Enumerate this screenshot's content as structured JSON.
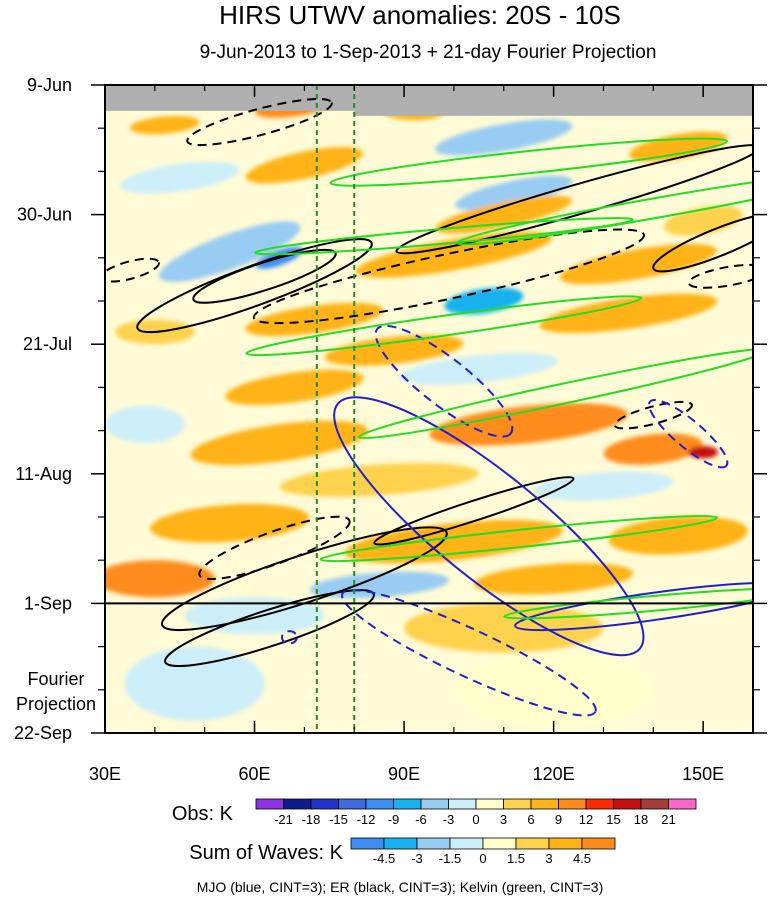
{
  "chart_data": {
    "type": "heatmap",
    "title": "HIRS UTWV anomalies: 20S - 10S",
    "subtitle": "9-Jun-2013 to 1-Sep-2013 + 21-day Fourier Projection",
    "x_axis": {
      "range": [
        30,
        160
      ],
      "ticks": [
        30,
        60,
        90,
        120,
        150
      ],
      "tick_labels": [
        "30E",
        "60E",
        "90E",
        "120E",
        "150E"
      ],
      "minor_ticks": [
        40,
        50,
        70,
        80,
        100,
        110,
        130,
        140,
        160
      ]
    },
    "y_axis": {
      "range_days": [
        0,
        105
      ],
      "ticks_days": [
        0,
        21,
        42,
        63,
        84,
        105
      ],
      "tick_labels": [
        "9-Jun",
        "30-Jun",
        "21-Jul",
        "11-Aug",
        "1-Sep",
        "22-Sep"
      ],
      "reversed": true
    },
    "projection_start_day": 84,
    "projection_label": [
      "Fourier",
      "Projection"
    ],
    "missing_until_day": 5,
    "missing_from_lon": 80,
    "dashed_reference_lons": [
      72.5,
      80
    ],
    "colorbars": [
      {
        "label": "Obs: K",
        "levels": [
          -21,
          -18,
          -15,
          -12,
          -9,
          -6,
          -3,
          0,
          3,
          6,
          9,
          12,
          15,
          18,
          21
        ],
        "colors": [
          "#8c33e6",
          "#0f1a8c",
          "#2033cc",
          "#3f6ae0",
          "#3d8ef0",
          "#19b2f0",
          "#99ccf2",
          "#cceef9",
          "#ffffcc",
          "#ffd24d",
          "#ffb319",
          "#ff8c1a",
          "#ff2a00",
          "#c81010",
          "#a83c3c",
          "#ff66c8"
        ]
      },
      {
        "label": "Sum of Waves: K",
        "levels": [
          -4.5,
          -3,
          -1.5,
          0,
          1.5,
          3,
          4.5
        ],
        "colors": [
          "#3d8ef0",
          "#19b2f0",
          "#99ccf2",
          "#cceef9",
          "#ffffcc",
          "#ffd24d",
          "#ffb319",
          "#ff8c1a"
        ]
      }
    ],
    "contour_legend": "MJO (blue, CINT=3); ER (black, CINT=3); Kelvin (green, CINT=3)",
    "wave_colors": {
      "MJO": "#1f1fcc",
      "ER": "#000000",
      "Kelvin": "#22dd22"
    },
    "field_colors": {
      "missing": "#b0b0b0",
      "reference_line": "#228b22"
    },
    "anomaly_features": [
      {
        "lon": 68,
        "day": 3.5,
        "lon_half_width": 8,
        "day_half_width": 1.6,
        "angle": -8,
        "value": 9
      },
      {
        "lon": 92,
        "day": 4.5,
        "lon_half_width": 6,
        "day_half_width": 1.2,
        "angle": 0,
        "value": 6
      },
      {
        "lon": 42,
        "day": 6.5,
        "lon_half_width": 7,
        "day_half_width": 1.4,
        "angle": -5,
        "value": 6
      },
      {
        "lon": 110,
        "day": 8.5,
        "lon_half_width": 14,
        "day_half_width": 2.2,
        "angle": -10,
        "value": -6
      },
      {
        "lon": 145,
        "day": 10,
        "lon_half_width": 10,
        "day_half_width": 2,
        "angle": -10,
        "value": 6
      },
      {
        "lon": 70,
        "day": 13,
        "lon_half_width": 12,
        "day_half_width": 2.2,
        "angle": -12,
        "value": 6
      },
      {
        "lon": 45,
        "day": 15,
        "lon_half_width": 12,
        "day_half_width": 2.2,
        "angle": -8,
        "value": -3
      },
      {
        "lon": 112,
        "day": 17.5,
        "lon_half_width": 12,
        "day_half_width": 2,
        "angle": -12,
        "value": -6
      },
      {
        "lon": 110,
        "day": 21,
        "lon_half_width": 14,
        "day_half_width": 2,
        "angle": -12,
        "value": 6
      },
      {
        "lon": 150,
        "day": 22,
        "lon_half_width": 8,
        "day_half_width": 2.2,
        "angle": -10,
        "value": 3
      },
      {
        "lon": 55,
        "day": 27,
        "lon_half_width": 15,
        "day_half_width": 2.8,
        "angle": -20,
        "value": -6
      },
      {
        "lon": 65,
        "day": 28,
        "lon_half_width": 5,
        "day_half_width": 1.2,
        "angle": -20,
        "value": -12
      },
      {
        "lon": 100,
        "day": 27.5,
        "lon_half_width": 20,
        "day_half_width": 2.5,
        "angle": -10,
        "value": 6
      },
      {
        "lon": 137,
        "day": 29,
        "lon_half_width": 16,
        "day_half_width": 2.4,
        "angle": -10,
        "value": 6
      },
      {
        "lon": 106,
        "day": 35,
        "lon_half_width": 8,
        "day_half_width": 2,
        "angle": -8,
        "value": -9
      },
      {
        "lon": 72,
        "day": 38,
        "lon_half_width": 14,
        "day_half_width": 2.2,
        "angle": -8,
        "value": 6
      },
      {
        "lon": 135,
        "day": 37,
        "lon_half_width": 18,
        "day_half_width": 2.5,
        "angle": -8,
        "value": 6
      },
      {
        "lon": 40,
        "day": 40,
        "lon_half_width": 8,
        "day_half_width": 2,
        "angle": 0,
        "value": 3
      },
      {
        "lon": 88,
        "day": 43,
        "lon_half_width": 14,
        "day_half_width": 2.2,
        "angle": -6,
        "value": 6
      },
      {
        "lon": 105,
        "day": 46,
        "lon_half_width": 16,
        "day_half_width": 2.2,
        "angle": -6,
        "value": -3
      },
      {
        "lon": 68,
        "day": 49,
        "lon_half_width": 14,
        "day_half_width": 2.4,
        "angle": -8,
        "value": 6
      },
      {
        "lon": 38,
        "day": 55,
        "lon_half_width": 8,
        "day_half_width": 3,
        "angle": 0,
        "value": -3
      },
      {
        "lon": 65,
        "day": 58,
        "lon_half_width": 18,
        "day_half_width": 3,
        "angle": -8,
        "value": 6
      },
      {
        "lon": 115,
        "day": 55,
        "lon_half_width": 20,
        "day_half_width": 3,
        "angle": -6,
        "value": 9
      },
      {
        "lon": 140,
        "day": 59,
        "lon_half_width": 10,
        "day_half_width": 2.4,
        "angle": -6,
        "value": 9
      },
      {
        "lon": 150,
        "day": 59.5,
        "lon_half_width": 3,
        "day_half_width": 1,
        "angle": 0,
        "value": 15
      },
      {
        "lon": 85,
        "day": 64,
        "lon_half_width": 20,
        "day_half_width": 2.5,
        "angle": -4,
        "value": 3
      },
      {
        "lon": 130,
        "day": 65,
        "lon_half_width": 14,
        "day_half_width": 2.2,
        "angle": -4,
        "value": -3
      },
      {
        "lon": 55,
        "day": 71,
        "lon_half_width": 16,
        "day_half_width": 3,
        "angle": -4,
        "value": 6
      },
      {
        "lon": 100,
        "day": 74,
        "lon_half_width": 22,
        "day_half_width": 3,
        "angle": -6,
        "value": 6
      },
      {
        "lon": 145,
        "day": 73,
        "lon_half_width": 14,
        "day_half_width": 3,
        "angle": -4,
        "value": 6
      },
      {
        "lon": 40,
        "day": 80,
        "lon_half_width": 12,
        "day_half_width": 3,
        "angle": 0,
        "value": 9
      },
      {
        "lon": 85,
        "day": 81,
        "lon_half_width": 14,
        "day_half_width": 2,
        "angle": -4,
        "value": -6
      },
      {
        "lon": 120,
        "day": 80,
        "lon_half_width": 16,
        "day_half_width": 2.4,
        "angle": -4,
        "value": 6
      },
      {
        "lon": 60,
        "day": 86,
        "lon_half_width": 14,
        "day_half_width": 3,
        "angle": 0,
        "value": -3
      },
      {
        "lon": 110,
        "day": 88,
        "lon_half_width": 20,
        "day_half_width": 4,
        "angle": 0,
        "value": 3
      },
      {
        "lon": 48,
        "day": 97,
        "lon_half_width": 14,
        "day_half_width": 6,
        "angle": 0,
        "value": -1.5
      },
      {
        "lon": 120,
        "day": 98,
        "lon_half_width": 20,
        "day_half_width": 6,
        "angle": 0,
        "value": 1.5
      }
    ],
    "wave_contours": [
      {
        "wave": "ER",
        "sign": "negative",
        "lon": 61,
        "day": 6,
        "lon_half_width": 15,
        "day_half_width": 2.1,
        "angle": -15
      },
      {
        "wave": "ER",
        "sign": "positive",
        "lon": 125,
        "day": 18.5,
        "lon_half_width": 38,
        "day_half_width": 2.4,
        "angle": -16
      },
      {
        "wave": "ER",
        "sign": "positive",
        "lon": 62,
        "day": 31,
        "lon_half_width": 15,
        "day_half_width": 2.2,
        "angle": -18
      },
      {
        "wave": "ER",
        "sign": "positive",
        "lon": 60,
        "day": 32.5,
        "lon_half_width": 25,
        "day_half_width": 3.2,
        "angle": -20
      },
      {
        "wave": "ER",
        "sign": "positive",
        "lon": 153,
        "day": 25.5,
        "lon_half_width": 14,
        "day_half_width": 2.2,
        "angle": -22
      },
      {
        "wave": "ER",
        "sign": "negative",
        "lon": 35,
        "day": 30,
        "lon_half_width": 6,
        "day_half_width": 1.4,
        "angle": -15
      },
      {
        "wave": "ER",
        "sign": "negative",
        "lon": 99,
        "day": 31,
        "lon_half_width": 40,
        "day_half_width": 3.6,
        "angle": -12
      },
      {
        "wave": "ER",
        "sign": "negative",
        "lon": 155,
        "day": 31,
        "lon_half_width": 8,
        "day_half_width": 1.5,
        "angle": -10
      },
      {
        "wave": "ER",
        "sign": "negative",
        "lon": 140,
        "day": 53.5,
        "lon_half_width": 8,
        "day_half_width": 1.4,
        "angle": -15
      },
      {
        "wave": "ER",
        "sign": "positive",
        "lon": 104,
        "day": 69,
        "lon_half_width": 21,
        "day_half_width": 1.6,
        "angle": -18
      },
      {
        "wave": "ER",
        "sign": "negative",
        "lon": 64,
        "day": 75,
        "lon_half_width": 16,
        "day_half_width": 2.6,
        "angle": -20
      },
      {
        "wave": "ER",
        "sign": "positive",
        "lon": 70,
        "day": 80,
        "lon_half_width": 30,
        "day_half_width": 3.8,
        "angle": -18
      },
      {
        "wave": "ER",
        "sign": "positive",
        "lon": 63,
        "day": 88,
        "lon_half_width": 22,
        "day_half_width": 2.9,
        "angle": -18
      },
      {
        "wave": "MJO",
        "sign": "negative",
        "lon": 98,
        "day": 48,
        "lon_half_width": 17,
        "day_half_width": 3.8,
        "angle": 38
      },
      {
        "wave": "MJO",
        "sign": "negative",
        "lon": 147,
        "day": 56.5,
        "lon_half_width": 10,
        "day_half_width": 2.2,
        "angle": 40
      },
      {
        "wave": "MJO",
        "sign": "positive",
        "lon": 107,
        "day": 71.5,
        "lon_half_width": 39,
        "day_half_width": 8.5,
        "angle": 39
      },
      {
        "wave": "MJO",
        "sign": "positive",
        "lon": 140,
        "day": 84.5,
        "lon_half_width": 28,
        "day_half_width": 2.2,
        "angle": -8
      },
      {
        "wave": "MJO",
        "sign": "negative",
        "lon": 103,
        "day": 92,
        "lon_half_width": 28,
        "day_half_width": 3.8,
        "angle": 25
      },
      {
        "wave": "MJO",
        "sign": "negative",
        "lon": 67,
        "day": 89.5,
        "lon_half_width": 1.5,
        "day_half_width": 1,
        "angle": 0
      },
      {
        "wave": "Kelvin",
        "sign": "positive",
        "lon": 115,
        "day": 12.5,
        "lon_half_width": 40,
        "day_half_width": 1.8,
        "angle": -6
      },
      {
        "wave": "Kelvin",
        "sign": "positive",
        "lon": 140,
        "day": 20,
        "lon_half_width": 40,
        "day_half_width": 1.6,
        "angle": -10
      },
      {
        "wave": "Kelvin",
        "sign": "positive",
        "lon": 98,
        "day": 24.5,
        "lon_half_width": 38,
        "day_half_width": 1.2,
        "angle": -5
      },
      {
        "wave": "Kelvin",
        "sign": "positive",
        "lon": 98,
        "day": 39,
        "lon_half_width": 40,
        "day_half_width": 1.6,
        "angle": -8
      },
      {
        "wave": "Kelvin",
        "sign": "positive",
        "lon": 122,
        "day": 50,
        "lon_half_width": 42,
        "day_half_width": 1.6,
        "angle": -12
      },
      {
        "wave": "Kelvin",
        "sign": "positive",
        "lon": 113,
        "day": 73.5,
        "lon_half_width": 40,
        "day_half_width": 1.4,
        "angle": -6
      },
      {
        "wave": "Kelvin",
        "sign": "positive",
        "lon": 140,
        "day": 84,
        "lon_half_width": 30,
        "day_half_width": 1.2,
        "angle": -5
      }
    ]
  }
}
